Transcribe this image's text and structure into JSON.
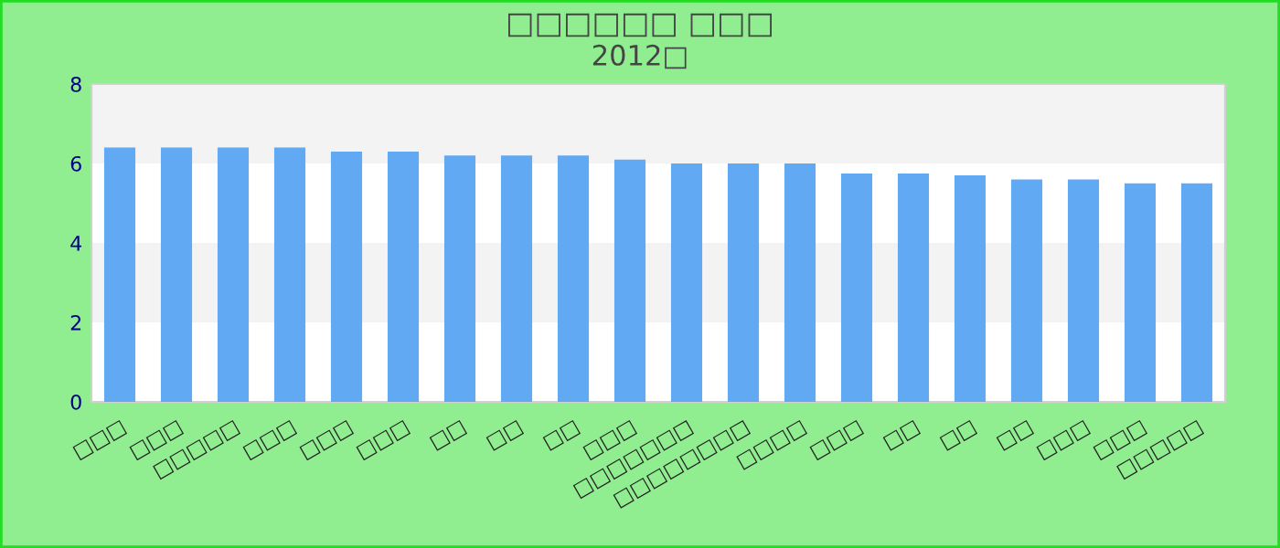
{
  "chart_data": {
    "type": "bar",
    "title": "□□□□□□ □□□",
    "subtitle": "2012□",
    "categories": [
      "□□□",
      "□□□",
      "□□□□□",
      "□□□",
      "□□□",
      "□□□",
      "□□",
      "□□",
      "□□",
      "□□□",
      "□□□□□□□",
      "□□□□□□□□",
      "□□□□",
      "□□□",
      "□□",
      "□□",
      "□□",
      "□□□",
      "□□□",
      "□□□□□"
    ],
    "series": [
      {
        "color": "#62a9f4",
        "values": [
          6.4,
          6.4,
          6.4,
          6.4,
          6.3,
          6.3,
          6.2,
          6.2,
          6.2,
          6.1,
          6.0,
          6.0,
          6.0,
          5.75,
          5.75,
          5.7,
          5.6,
          5.6,
          5.5,
          5.5
        ]
      }
    ],
    "ylim": [
      0,
      8
    ],
    "yticks": [
      0,
      2,
      4,
      6,
      8
    ]
  }
}
